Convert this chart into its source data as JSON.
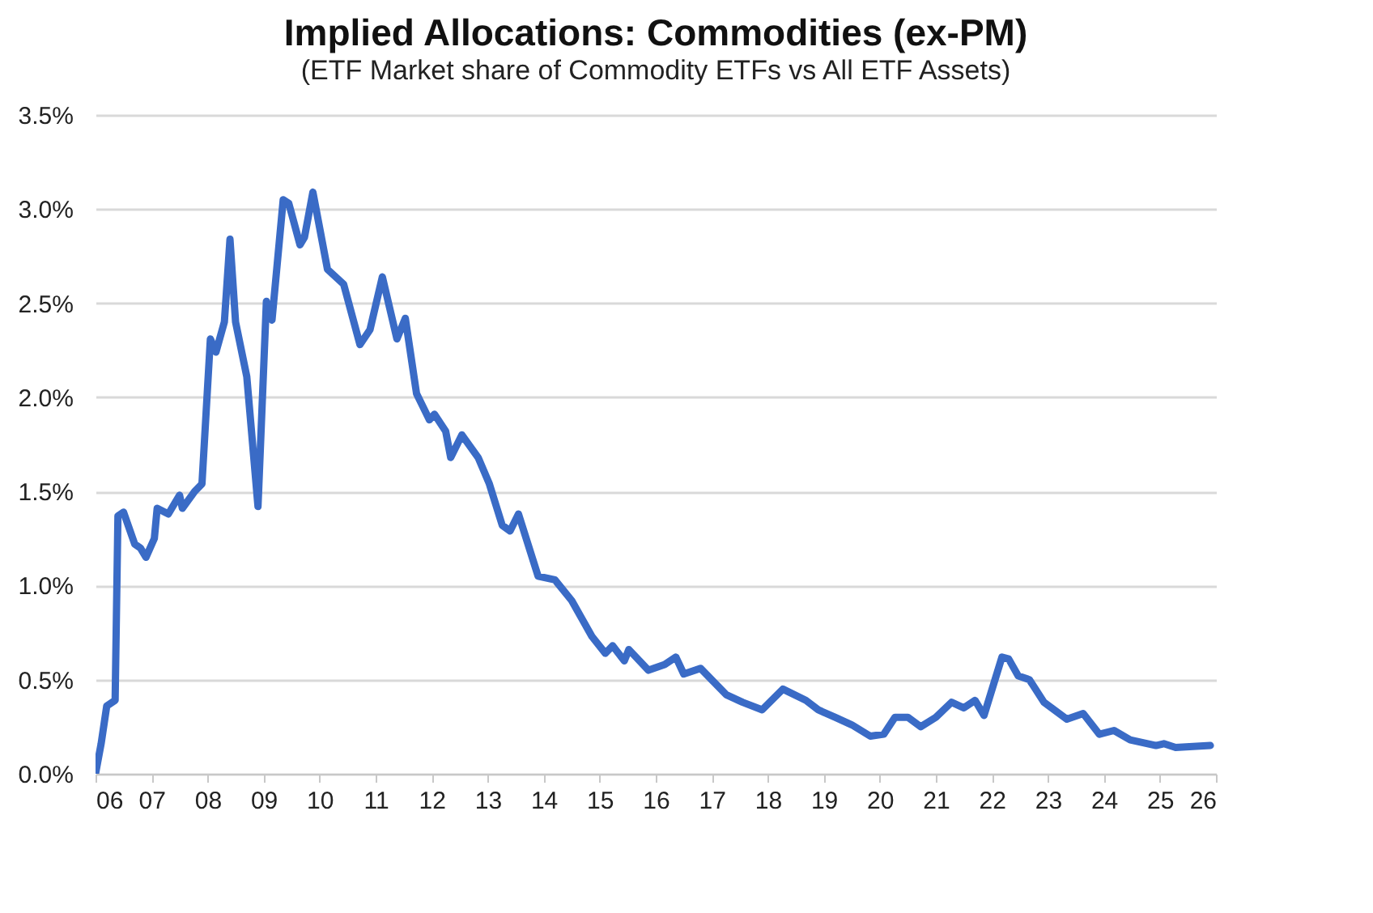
{
  "chart_data": {
    "type": "line",
    "title": "Implied Allocations: Commodities (ex-PM)",
    "subtitle": "(ETF Market share of Commodity ETFs vs All ETF Assets)",
    "x": [
      2006.0,
      2006.1,
      2006.2,
      2006.35,
      2006.4,
      2006.5,
      2006.7,
      2006.8,
      2006.9,
      2007.05,
      2007.1,
      2007.3,
      2007.5,
      2007.55,
      2007.77,
      2007.9,
      2008.05,
      2008.15,
      2008.3,
      2008.4,
      2008.5,
      2008.7,
      2008.9,
      2009.05,
      2009.15,
      2009.35,
      2009.45,
      2009.65,
      2009.73,
      2009.88,
      2010.14,
      2010.43,
      2010.72,
      2010.9,
      2011.12,
      2011.38,
      2011.53,
      2011.73,
      2011.96,
      2012.05,
      2012.25,
      2012.34,
      2012.54,
      2012.83,
      2013.03,
      2013.26,
      2013.4,
      2013.55,
      2013.9,
      2014.2,
      2014.5,
      2014.86,
      2015.1,
      2015.23,
      2015.44,
      2015.52,
      2015.87,
      2016.16,
      2016.36,
      2016.5,
      2016.8,
      2017.26,
      2017.55,
      2017.9,
      2018.27,
      2018.68,
      2018.9,
      2019.2,
      2019.5,
      2019.83,
      2020.07,
      2020.27,
      2020.5,
      2020.73,
      2021.0,
      2021.28,
      2021.5,
      2021.7,
      2021.86,
      2022.18,
      2022.3,
      2022.47,
      2022.67,
      2022.93,
      2023.34,
      2023.63,
      2023.92,
      2024.18,
      2024.47,
      2024.93,
      2025.07,
      2025.28,
      2025.9
    ],
    "series": [
      {
        "color": "#3a6bc6",
        "values": [
          0.0,
          0.16,
          0.36,
          0.39,
          1.37,
          1.39,
          1.22,
          1.2,
          1.15,
          1.25,
          1.41,
          1.38,
          1.48,
          1.41,
          1.5,
          1.54,
          2.31,
          2.24,
          2.4,
          2.84,
          2.4,
          2.11,
          1.42,
          2.51,
          2.41,
          3.05,
          3.03,
          2.81,
          2.85,
          3.09,
          2.68,
          2.6,
          2.28,
          2.36,
          2.64,
          2.31,
          2.42,
          2.02,
          1.88,
          1.91,
          1.82,
          1.68,
          1.8,
          1.68,
          1.54,
          1.32,
          1.29,
          1.38,
          1.05,
          1.03,
          0.92,
          0.73,
          0.64,
          0.68,
          0.6,
          0.66,
          0.55,
          0.58,
          0.62,
          0.53,
          0.56,
          0.42,
          0.38,
          0.34,
          0.45,
          0.39,
          0.34,
          0.3,
          0.26,
          0.2,
          0.21,
          0.3,
          0.3,
          0.25,
          0.3,
          0.38,
          0.35,
          0.39,
          0.31,
          0.62,
          0.61,
          0.52,
          0.5,
          0.38,
          0.29,
          0.32,
          0.21,
          0.23,
          0.18,
          0.15,
          0.16,
          0.14,
          0.15
        ]
      }
    ],
    "xlim": [
      2006,
      2026
    ],
    "xticks": [
      {
        "value": 2006,
        "label": "06"
      },
      {
        "value": 2007,
        "label": "07"
      },
      {
        "value": 2008,
        "label": "08"
      },
      {
        "value": 2009,
        "label": "09"
      },
      {
        "value": 2010,
        "label": "10"
      },
      {
        "value": 2011,
        "label": "11"
      },
      {
        "value": 2012,
        "label": "12"
      },
      {
        "value": 2013,
        "label": "13"
      },
      {
        "value": 2014,
        "label": "14"
      },
      {
        "value": 2015,
        "label": "15"
      },
      {
        "value": 2016,
        "label": "16"
      },
      {
        "value": 2017,
        "label": "17"
      },
      {
        "value": 2018,
        "label": "18"
      },
      {
        "value": 2019,
        "label": "19"
      },
      {
        "value": 2020,
        "label": "20"
      },
      {
        "value": 2021,
        "label": "21"
      },
      {
        "value": 2022,
        "label": "22"
      },
      {
        "value": 2023,
        "label": "23"
      },
      {
        "value": 2024,
        "label": "24"
      },
      {
        "value": 2025,
        "label": "25"
      },
      {
        "value": 2026,
        "label": "26"
      }
    ],
    "ylim": [
      0,
      3.5
    ],
    "yticks": [
      {
        "value": 0,
        "label": "0.0%"
      },
      {
        "value": 0.5,
        "label": "0.5%"
      },
      {
        "value": 1,
        "label": "1.0%"
      },
      {
        "value": 1.5,
        "label": "1.5%"
      },
      {
        "value": 2,
        "label": "2.0%"
      },
      {
        "value": 2.5,
        "label": "2.5%"
      },
      {
        "value": 3,
        "label": "3.0%"
      },
      {
        "value": 3.5,
        "label": "3.5%"
      }
    ],
    "grid": "y",
    "line_style": "solid",
    "marker": "none",
    "legend": false
  }
}
